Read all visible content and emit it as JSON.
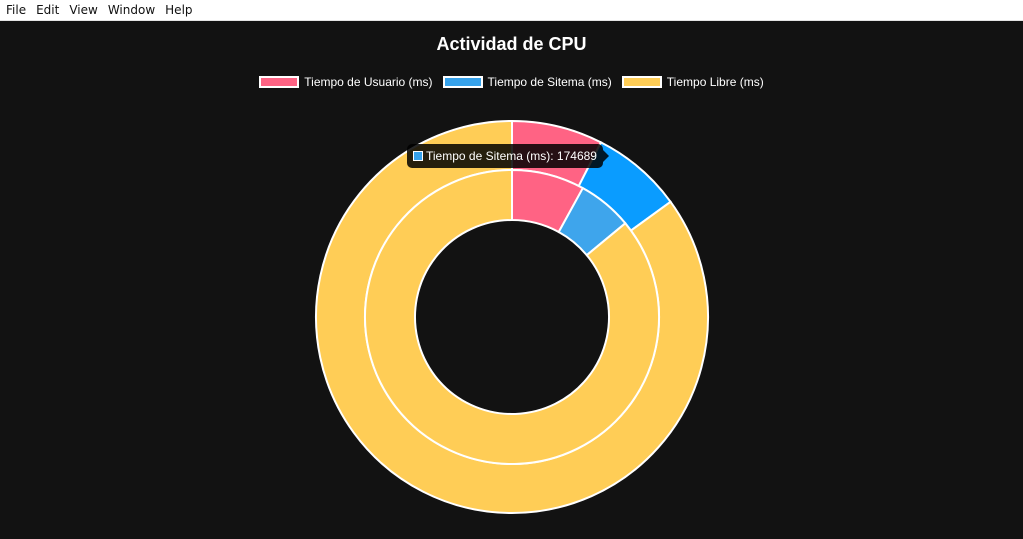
{
  "menu": {
    "items": [
      "File",
      "Edit",
      "View",
      "Window",
      "Help"
    ]
  },
  "chart_data": {
    "type": "pie",
    "subtype": "doughnut",
    "title": "Actividad de CPU",
    "legend_position": "top",
    "labels": [
      "Tiempo de Usuario (ms)",
      "Tiempo de Sitema (ms)",
      "Tiempo Libre (ms)"
    ],
    "colors": {
      "user": "#ff6384",
      "system_outer": "#0a9cff",
      "system_inner": "#3ea5ec",
      "idle": "#ffcd56",
      "legend_system": "#36a2eb"
    },
    "series": [
      {
        "ring": "outer",
        "fractions": [
          0.075,
          0.075,
          0.85
        ]
      },
      {
        "ring": "inner",
        "fractions": [
          0.08,
          0.06,
          0.86
        ],
        "approx_values": [
          229000,
          174689,
          2460000
        ]
      }
    ],
    "tooltip": {
      "label": "Tiempo de Sitema (ms)",
      "value": "174689",
      "text": "Tiempo de Sitema (ms): 174689"
    }
  }
}
